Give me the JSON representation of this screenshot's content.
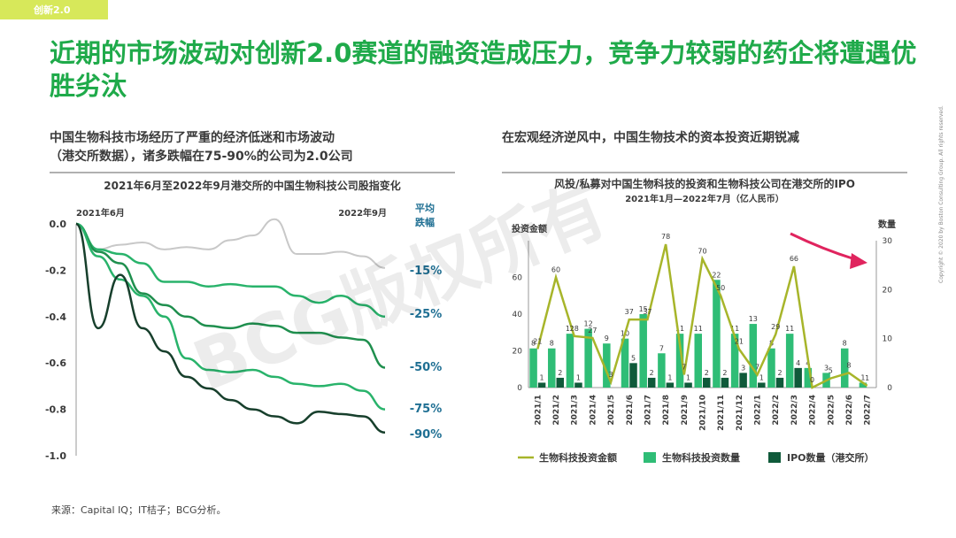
{
  "tag": "创新2.0",
  "title": "近期的市场波动对创新2.0赛道的融资造成压力，竞争力较弱的药企将遭遇优胜劣汰",
  "left_subtitle_l1": "中国生物科技市场经历了严重的经济低迷和市场波动",
  "left_subtitle_l2": "（港交所数据），诸多跌幅在75-90%的公司为2.0公司",
  "right_subtitle": "在宏观经济逆风中，中国生物技术的资本投资近期锐减",
  "source": "来源：Capital IQ；IT桔子；BCG分析。",
  "copyright": "Copyright © 2020 by Boston Consulting Group. All rights reserved.",
  "watermark": "BCG版权所有",
  "colors": {
    "green_dark": "#1f7a3e",
    "green": "#29b36b",
    "green_light": "#4cc48a",
    "gray": "#c8c8c8",
    "teal": "#0f5a3a",
    "olive": "#a7b52a",
    "bar_green": "#2fbd76",
    "bar_dark": "#0f5a3a",
    "arrow": "#e0245e"
  },
  "chart_data": [
    {
      "type": "line",
      "title": "2021年6月至2022年9月港交所的中国生物科技公司股指变化",
      "x_start_label": "2021年6月",
      "x_end_label": "2022年9月",
      "legend_title": "平均跌幅",
      "ylim": [
        -1.0,
        0.0
      ],
      "yticks": [
        "0.0",
        "-0.2",
        "-0.4",
        "-0.6",
        "-0.8",
        "-1.0"
      ],
      "series": [
        {
          "name": "-15%",
          "color": "#c8c8c8",
          "values": [
            0,
            -0.11,
            -0.09,
            -0.08,
            -0.11,
            -0.1,
            -0.11,
            -0.07,
            -0.05,
            0.02,
            -0.13,
            -0.13,
            -0.12,
            -0.14,
            -0.19
          ]
        },
        {
          "name": "-25%",
          "color": "#29b36b",
          "values": [
            0,
            -0.11,
            -0.13,
            -0.17,
            -0.25,
            -0.25,
            -0.27,
            -0.26,
            -0.27,
            -0.27,
            -0.31,
            -0.34,
            -0.31,
            -0.35,
            -0.4
          ]
        },
        {
          "name": "-50%",
          "color": "#1f8f4e",
          "values": [
            0,
            -0.12,
            -0.17,
            -0.3,
            -0.35,
            -0.4,
            -0.44,
            -0.45,
            -0.43,
            -0.44,
            -0.47,
            -0.47,
            -0.49,
            -0.5,
            -0.62
          ]
        },
        {
          "name": "-75%",
          "color": "#29b36b",
          "values": [
            0,
            -0.14,
            -0.24,
            -0.31,
            -0.4,
            -0.58,
            -0.63,
            -0.64,
            -0.63,
            -0.66,
            -0.69,
            -0.7,
            -0.69,
            -0.72,
            -0.8
          ]
        },
        {
          "name": "-90%",
          "color": "#173f2c",
          "values": [
            0,
            -0.45,
            -0.22,
            -0.45,
            -0.55,
            -0.66,
            -0.71,
            -0.76,
            -0.8,
            -0.83,
            -0.86,
            -0.81,
            -0.82,
            -0.83,
            -0.9
          ]
        }
      ]
    },
    {
      "type": "bar",
      "title": "风投/私募对中国生物科技的投资和生物科技公司在港交所的IPO",
      "subtitle": "2021年1月—2022年7月（亿人民币）",
      "y_left_label": "投资金额",
      "y_right_label": "数量",
      "ylim_left": [
        0,
        80
      ],
      "ylim_right": [
        0,
        30
      ],
      "yticks_left": [
        "0",
        "20",
        "40",
        "60"
      ],
      "yticks_right": [
        "0",
        "10",
        "20",
        "30"
      ],
      "categories": [
        "2021/1",
        "2021/2",
        "2021/3",
        "2021/4",
        "2021/5",
        "2021/6",
        "2021/7",
        "2021/8",
        "2021/9",
        "2021/10",
        "2021/11",
        "2021/12",
        "2022/1",
        "2022/2",
        "2022/3",
        "2022/4",
        "2022/5",
        "2022/6",
        "2022/7"
      ],
      "series": [
        {
          "name": "生物科技投资金额",
          "type": "line",
          "axis": "left",
          "color": "#a7b52a",
          "values": [
            21,
            60,
            28,
            27,
            3,
            37,
            37,
            78,
            7,
            70,
            50,
            21,
            7,
            29,
            66,
            0,
            5,
            8,
            1
          ]
        },
        {
          "name": "生物科技投资数量",
          "type": "bar",
          "axis": "right",
          "color": "#2fbd76",
          "values": [
            8,
            8,
            11,
            12,
            9,
            10,
            15,
            7,
            11,
            11,
            22,
            11,
            13,
            8,
            11,
            4,
            3,
            8,
            1
          ]
        },
        {
          "name": "IPO数量（港交所）",
          "type": "bar",
          "axis": "right",
          "color": "#0f5a3a",
          "values": [
            1,
            2,
            1,
            null,
            null,
            5,
            2,
            1,
            1,
            2,
            2,
            3,
            1,
            2,
            4,
            null,
            null,
            null,
            null
          ]
        }
      ]
    }
  ]
}
